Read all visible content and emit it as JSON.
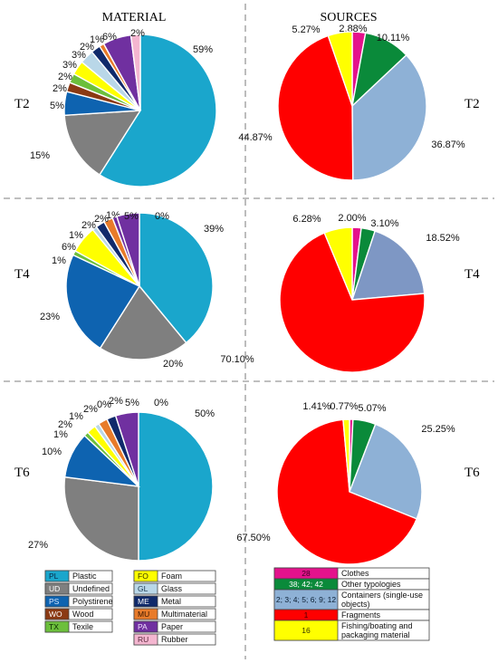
{
  "headers": {
    "material": "MATERIAL",
    "sources": "SOURCES"
  },
  "chart_data": [
    {
      "type": "pie",
      "id": "mat-T2",
      "row_label": "T2",
      "slices": [
        {
          "code": "PL",
          "value": 59,
          "label": "59%",
          "color": "#1aa6cc"
        },
        {
          "code": "UD",
          "value": 15,
          "label": "15%",
          "color": "#7f7f7f"
        },
        {
          "code": "PS",
          "value": 5,
          "label": "5%",
          "color": "#0e63b0"
        },
        {
          "code": "WO",
          "value": 2,
          "label": "2%",
          "color": "#8b3a14"
        },
        {
          "code": "TX",
          "value": 2,
          "label": "2%",
          "color": "#6cbf3c"
        },
        {
          "code": "FO",
          "value": 3,
          "label": "3%",
          "color": "#ffff00"
        },
        {
          "code": "GL",
          "value": 3,
          "label": "3%",
          "color": "#b9d7e8"
        },
        {
          "code": "ME",
          "value": 2,
          "label": "2%",
          "color": "#102a6b"
        },
        {
          "code": "MU",
          "value": 1,
          "label": "1%",
          "color": "#e87b2a"
        },
        {
          "code": "PA",
          "value": 6,
          "label": "6%",
          "color": "#7030a0"
        },
        {
          "code": "RU",
          "value": 2,
          "label": "2%",
          "color": "#f4b6d0"
        }
      ]
    },
    {
      "type": "pie",
      "id": "src-T2",
      "row_label": "T2",
      "slices": [
        {
          "value": 2.88,
          "label": "2.88%",
          "color": "#e4128c"
        },
        {
          "value": 10.11,
          "label": "10.11%",
          "color": "#0a8a3a"
        },
        {
          "value": 36.87,
          "label": "36.87%",
          "color": "#8eb1d6"
        },
        {
          "value": 44.87,
          "label": "44.87%",
          "color": "#ff0000"
        },
        {
          "value": 5.27,
          "label": "5.27%",
          "color": "#ffff00"
        }
      ]
    },
    {
      "type": "pie",
      "id": "mat-T4",
      "row_label": "T4",
      "slices": [
        {
          "code": "PL",
          "value": 39,
          "label": "39%",
          "color": "#1aa6cc"
        },
        {
          "code": "UD",
          "value": 20,
          "label": "20%",
          "color": "#7f7f7f"
        },
        {
          "code": "PS",
          "value": 23,
          "label": "23%",
          "color": "#0e63b0"
        },
        {
          "code": "TX",
          "value": 1,
          "label": "1%",
          "color": "#6cbf3c"
        },
        {
          "code": "FO",
          "value": 6,
          "label": "6%",
          "color": "#ffff00"
        },
        {
          "code": "GL",
          "value": 1,
          "label": "1%",
          "color": "#b9d7e8"
        },
        {
          "code": "ME",
          "value": 2,
          "label": "2%",
          "color": "#102a6b"
        },
        {
          "code": "MU",
          "value": 2,
          "label": "2%",
          "color": "#e87b2a"
        },
        {
          "code": "PA",
          "value": 1,
          "label": "1%",
          "color": "#7030a0"
        },
        {
          "code": "PA2",
          "value": 5,
          "label": "5%",
          "color": "#7030a0"
        },
        {
          "code": "RU",
          "value": 0,
          "label": "0%",
          "color": "#f4b6d0"
        }
      ]
    },
    {
      "type": "pie",
      "id": "src-T4",
      "row_label": "T4",
      "slices": [
        {
          "value": 2.0,
          "label": "2.00%",
          "color": "#e4128c"
        },
        {
          "value": 3.1,
          "label": "3.10%",
          "color": "#0a8a3a"
        },
        {
          "value": 18.52,
          "label": "18.52%",
          "color": "#7e97c4"
        },
        {
          "value": 70.1,
          "label": "70.10%",
          "color": "#ff0000"
        },
        {
          "value": 6.28,
          "label": "6.28%",
          "color": "#ffff00"
        }
      ]
    },
    {
      "type": "pie",
      "id": "mat-T6",
      "row_label": "T6",
      "slices": [
        {
          "code": "PL",
          "value": 50,
          "label": "50%",
          "color": "#1aa6cc"
        },
        {
          "code": "UD",
          "value": 27,
          "label": "27%",
          "color": "#7f7f7f"
        },
        {
          "code": "PS",
          "value": 10,
          "label": "10%",
          "color": "#0e63b0"
        },
        {
          "code": "TX",
          "value": 1,
          "label": "1%",
          "color": "#6cbf3c"
        },
        {
          "code": "FO",
          "value": 2,
          "label": "2%",
          "color": "#ffff00"
        },
        {
          "code": "GL",
          "value": 1,
          "label": "1%",
          "color": "#b9d7e8"
        },
        {
          "code": "MU",
          "value": 2,
          "label": "2%",
          "color": "#e87b2a"
        },
        {
          "code": "WO",
          "value": 0,
          "label": "0%",
          "color": "#8b3a14"
        },
        {
          "code": "ME",
          "value": 2,
          "label": "2%",
          "color": "#102a6b"
        },
        {
          "code": "PA",
          "value": 5,
          "label": "5%",
          "color": "#7030a0"
        },
        {
          "code": "RU",
          "value": 0,
          "label": "0%",
          "color": "#f4b6d0"
        }
      ]
    },
    {
      "type": "pie",
      "id": "src-T6",
      "row_label": "T6",
      "slices": [
        {
          "value": 0.77,
          "label": "0.77%",
          "color": "#e4128c"
        },
        {
          "value": 5.07,
          "label": "5.07%",
          "color": "#0a8a3a"
        },
        {
          "value": 25.25,
          "label": "25.25%",
          "color": "#8eb1d6"
        },
        {
          "value": 67.5,
          "label": "67.50%",
          "color": "#ff0000"
        },
        {
          "value": 1.41,
          "label": "1.41%",
          "color": "#ffff00"
        }
      ]
    }
  ],
  "material_legend": {
    "col1": [
      {
        "code": "PL",
        "label": "Plastic",
        "color": "#1aa6cc",
        "code_color": "#0a2a4a"
      },
      {
        "code": "UD",
        "label": "Undefined",
        "color": "#7f7f7f",
        "code_color": "#ffffff"
      },
      {
        "code": "PS",
        "label": "Polystirene",
        "color": "#0e63b0",
        "code_color": "#d9e8ff"
      },
      {
        "code": "WO",
        "label": "Wood",
        "color": "#8b3a14",
        "code_color": "#ffffff"
      },
      {
        "code": "TX",
        "label": "Texile",
        "color": "#6cbf3c",
        "code_color": "#0b2a00"
      }
    ],
    "col2": [
      {
        "code": "FO",
        "label": "Foam",
        "color": "#ffff00",
        "code_color": "#333300"
      },
      {
        "code": "GL",
        "label": "Glass",
        "color": "#b9d7e8",
        "code_color": "#1d3b52"
      },
      {
        "code": "ME",
        "label": "Metal",
        "color": "#102a6b",
        "code_color": "#ffffff"
      },
      {
        "code": "MU",
        "label": "Multimaterial",
        "color": "#e87b2a",
        "code_color": "#3b1600"
      },
      {
        "code": "PA",
        "label": "Paper",
        "color": "#7030a0",
        "code_color": "#f2e6ff"
      },
      {
        "code": "RU",
        "label": "Rubber",
        "color": "#f4b6d0",
        "code_color": "#5a2a3d"
      }
    ]
  },
  "sources_legend": [
    {
      "code": "28",
      "label": "Clothes",
      "color": "#e4128c",
      "code_color": "#3d0022",
      "lines": 1
    },
    {
      "code": "38; 42; 42",
      "label": "Other typologies",
      "color": "#0a8a3a",
      "code_color": "#ffffff",
      "lines": 1
    },
    {
      "code": "2; 3; 4; 5; 6; 9; 12",
      "label": "Containers (single-use",
      "label2": "objects)",
      "color": "#8eb1d6",
      "code_color": "#0b1f33",
      "lines": 2
    },
    {
      "code": "1",
      "label": "Fragments",
      "color": "#ff0000",
      "code_color": "#4a0000",
      "lines": 1
    },
    {
      "code": "16",
      "label": "Fishing/boating and",
      "label2": "packaging material",
      "color": "#ffff00",
      "code_color": "#333300",
      "lines": 2
    }
  ]
}
